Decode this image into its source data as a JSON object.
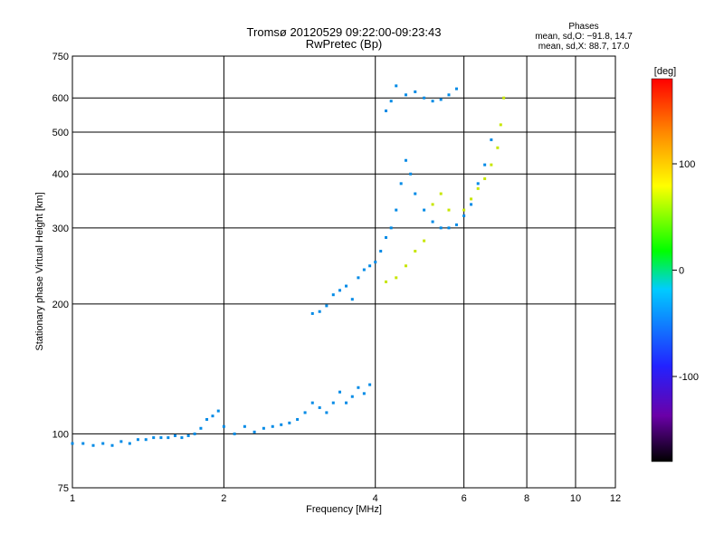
{
  "chart_data": {
    "type": "scatter",
    "title": "Tromsø 20120529 09:22:00-09:23:43",
    "subtitle": "RwPretec (Bp)",
    "xlabel": "Frequency [MHz]",
    "ylabel": "Stationary phase Virtual Height [km]",
    "x_scale": "log",
    "y_scale": "log",
    "xlim": [
      1,
      12
    ],
    "ylim": [
      75,
      750
    ],
    "x_ticks": [
      1,
      2,
      4,
      6,
      8,
      10,
      12
    ],
    "y_ticks": [
      75,
      100,
      200,
      300,
      400,
      500,
      600,
      750
    ],
    "grid": true,
    "phases_info": {
      "heading": "Phases",
      "line_o": "mean, sd,O: −91.8, 14.7",
      "line_x": "mean, sd,X: 88.7, 17.0"
    },
    "colorbar": {
      "label": "[deg]",
      "range": [
        -180,
        180
      ],
      "ticks": [
        100,
        0,
        -100
      ]
    },
    "series": [
      {
        "name": "O",
        "phase": -92,
        "points": [
          [
            1.0,
            95
          ],
          [
            1.05,
            95
          ],
          [
            1.1,
            94
          ],
          [
            1.15,
            95
          ],
          [
            1.2,
            94
          ],
          [
            1.25,
            96
          ],
          [
            1.3,
            95
          ],
          [
            1.35,
            97
          ],
          [
            1.4,
            97
          ],
          [
            1.45,
            98
          ],
          [
            1.5,
            98
          ],
          [
            1.55,
            98
          ],
          [
            1.6,
            99
          ],
          [
            1.65,
            98
          ],
          [
            1.7,
            99
          ],
          [
            1.75,
            100
          ],
          [
            1.8,
            103
          ],
          [
            1.85,
            108
          ],
          [
            1.9,
            110
          ],
          [
            1.95,
            113
          ],
          [
            2.0,
            104
          ],
          [
            2.1,
            100
          ],
          [
            2.2,
            104
          ],
          [
            2.3,
            101
          ],
          [
            2.4,
            103
          ],
          [
            2.5,
            104
          ],
          [
            2.6,
            105
          ],
          [
            2.7,
            106
          ],
          [
            2.8,
            108
          ],
          [
            2.9,
            112
          ],
          [
            3.0,
            118
          ],
          [
            3.1,
            115
          ],
          [
            3.2,
            112
          ],
          [
            3.3,
            118
          ],
          [
            3.4,
            125
          ],
          [
            3.5,
            118
          ],
          [
            3.6,
            122
          ],
          [
            3.7,
            128
          ],
          [
            3.8,
            124
          ],
          [
            3.9,
            130
          ],
          [
            3.0,
            190
          ],
          [
            3.1,
            192
          ],
          [
            3.2,
            198
          ],
          [
            3.3,
            210
          ],
          [
            3.4,
            215
          ],
          [
            3.5,
            220
          ],
          [
            3.6,
            205
          ],
          [
            3.7,
            230
          ],
          [
            3.8,
            240
          ],
          [
            3.9,
            245
          ],
          [
            4.0,
            250
          ],
          [
            4.1,
            265
          ],
          [
            4.2,
            285
          ],
          [
            4.3,
            300
          ],
          [
            4.4,
            330
          ],
          [
            4.5,
            380
          ],
          [
            4.6,
            430
          ],
          [
            4.7,
            400
          ],
          [
            4.8,
            360
          ],
          [
            5.0,
            330
          ],
          [
            5.2,
            310
          ],
          [
            5.4,
            300
          ],
          [
            5.6,
            300
          ],
          [
            5.8,
            305
          ],
          [
            6.0,
            320
          ],
          [
            6.2,
            340
          ],
          [
            6.4,
            380
          ],
          [
            6.6,
            420
          ],
          [
            6.8,
            480
          ],
          [
            4.2,
            560
          ],
          [
            4.3,
            590
          ],
          [
            4.4,
            640
          ],
          [
            4.6,
            610
          ],
          [
            4.8,
            620
          ],
          [
            5.0,
            600
          ],
          [
            5.2,
            590
          ],
          [
            5.4,
            595
          ],
          [
            5.6,
            610
          ],
          [
            5.8,
            630
          ]
        ]
      },
      {
        "name": "X",
        "phase": 89,
        "points": [
          [
            4.2,
            225
          ],
          [
            4.4,
            230
          ],
          [
            4.6,
            245
          ],
          [
            4.8,
            265
          ],
          [
            5.0,
            280
          ],
          [
            5.2,
            340
          ],
          [
            5.4,
            360
          ],
          [
            5.6,
            330
          ],
          [
            6.0,
            330
          ],
          [
            6.2,
            350
          ],
          [
            6.4,
            370
          ],
          [
            6.6,
            390
          ],
          [
            6.8,
            420
          ],
          [
            7.0,
            460
          ],
          [
            7.1,
            520
          ],
          [
            7.2,
            600
          ]
        ]
      }
    ]
  }
}
